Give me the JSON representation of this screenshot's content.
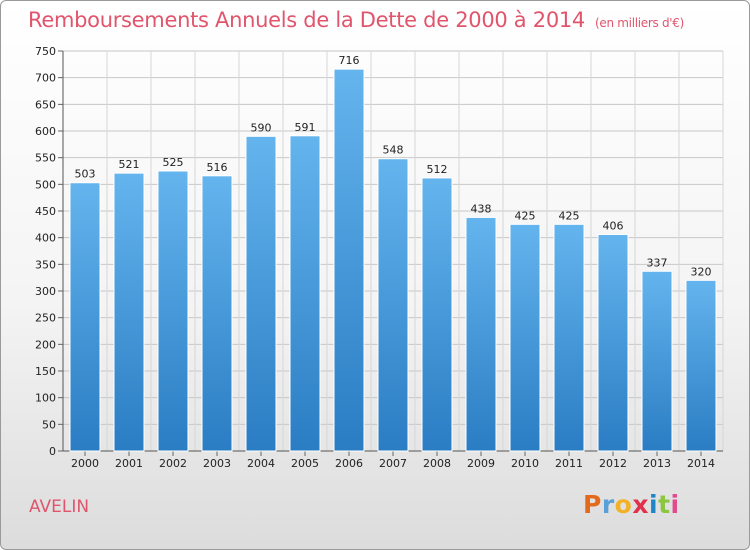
{
  "title": "Remboursements Annuels de la Dette de 2000 à 2014",
  "subtitle": "(en milliers d'€)",
  "city": "AVELIN",
  "brand": {
    "name": "Proxiti",
    "letter_colors": [
      "#e46a1b",
      "#5aa0d8",
      "#f2b227",
      "#e2314a",
      "#1e86c7",
      "#8cc63e",
      "#e24a8d"
    ]
  },
  "colors": {
    "bar_top": "#64b4ee",
    "bar_bottom": "#2a7dc3",
    "title": "#e0556c"
  },
  "chart_data": {
    "type": "bar",
    "title": "Remboursements Annuels de la Dette de 2000 à 2014",
    "subtitle": "(en milliers d'€)",
    "categories": [
      "2000",
      "2001",
      "2002",
      "2003",
      "2004",
      "2005",
      "2006",
      "2007",
      "2008",
      "2009",
      "2010",
      "2011",
      "2012",
      "2013",
      "2014"
    ],
    "values": [
      503,
      521,
      525,
      516,
      590,
      591,
      716,
      548,
      512,
      438,
      425,
      425,
      406,
      337,
      320
    ],
    "ylim": [
      0,
      750
    ],
    "yticks": [
      0,
      50,
      100,
      150,
      200,
      250,
      300,
      350,
      400,
      450,
      500,
      550,
      600,
      650,
      700,
      750
    ],
    "grid": true,
    "legend": "none"
  }
}
